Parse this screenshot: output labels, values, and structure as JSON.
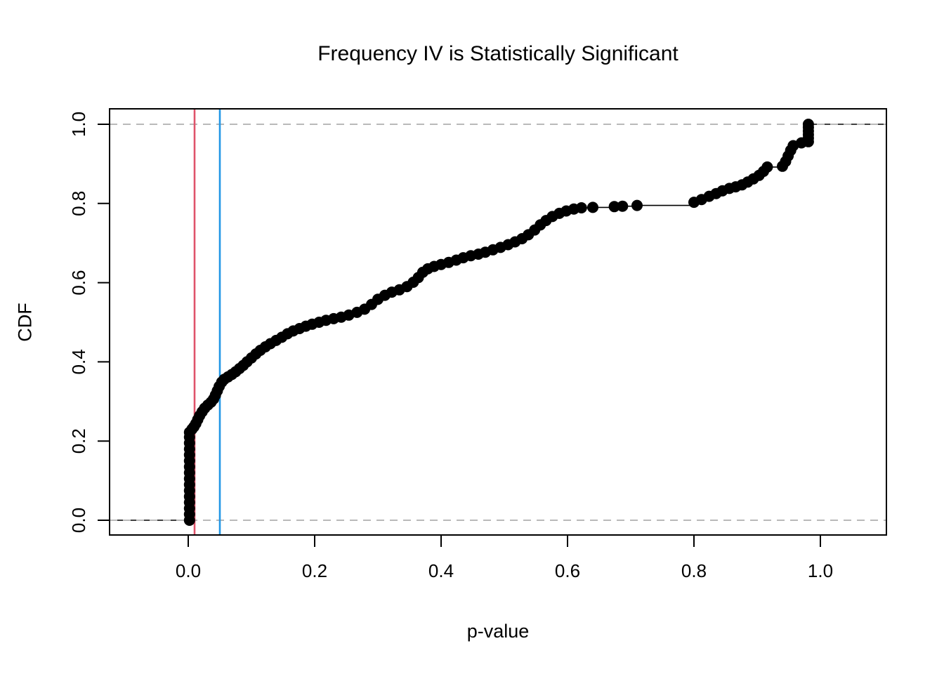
{
  "chart_data": {
    "type": "scatter",
    "subtype": "ecdf-step",
    "title": "Frequency IV is Statistically Significant",
    "xlabel": "p-value",
    "ylabel": "CDF",
    "xlim": [
      -0.125,
      1.105
    ],
    "ylim": [
      -0.04,
      1.075
    ],
    "x_ticks": [
      0.0,
      0.2,
      0.4,
      0.6,
      0.8,
      1.0
    ],
    "x_tick_labels": [
      "0.0",
      "0.2",
      "0.4",
      "0.6",
      "0.8",
      "1.0"
    ],
    "y_ticks": [
      0.0,
      0.2,
      0.4,
      0.6,
      0.8,
      1.0
    ],
    "y_tick_labels": [
      "0.0",
      "0.2",
      "0.4",
      "0.6",
      "0.8",
      "1.0"
    ],
    "grid": false,
    "point_color": "#000000",
    "line_color": "#000000",
    "frame_color": "#000000",
    "reference_lines": {
      "vertical": [
        {
          "x": 0.01,
          "color": "#DF536B",
          "style": "solid",
          "name": "alpha-0.01-line"
        },
        {
          "x": 0.05,
          "color": "#2297E6",
          "style": "solid",
          "name": "alpha-0.05-line"
        }
      ],
      "horizontal": [
        {
          "y": 0.0,
          "color": "#B9B9B9",
          "style": "dashed",
          "name": "cdf-0-line"
        },
        {
          "y": 1.0,
          "color": "#B9B9B9",
          "style": "dashed",
          "name": "cdf-1-line"
        }
      ]
    },
    "points": [
      [
        0.002,
        0.0
      ],
      [
        0.002,
        0.015
      ],
      [
        0.002,
        0.03
      ],
      [
        0.002,
        0.045
      ],
      [
        0.002,
        0.06
      ],
      [
        0.002,
        0.075
      ],
      [
        0.002,
        0.09
      ],
      [
        0.002,
        0.105
      ],
      [
        0.002,
        0.12
      ],
      [
        0.002,
        0.135
      ],
      [
        0.002,
        0.15
      ],
      [
        0.002,
        0.165
      ],
      [
        0.002,
        0.18
      ],
      [
        0.002,
        0.195
      ],
      [
        0.002,
        0.21
      ],
      [
        0.002,
        0.222
      ],
      [
        0.006,
        0.23
      ],
      [
        0.009,
        0.236
      ],
      [
        0.012,
        0.244
      ],
      [
        0.015,
        0.254
      ],
      [
        0.018,
        0.264
      ],
      [
        0.022,
        0.274
      ],
      [
        0.026,
        0.283
      ],
      [
        0.031,
        0.291
      ],
      [
        0.036,
        0.298
      ],
      [
        0.04,
        0.306
      ],
      [
        0.043,
        0.316
      ],
      [
        0.046,
        0.327
      ],
      [
        0.049,
        0.338
      ],
      [
        0.053,
        0.349
      ],
      [
        0.057,
        0.356
      ],
      [
        0.063,
        0.362
      ],
      [
        0.069,
        0.368
      ],
      [
        0.075,
        0.375
      ],
      [
        0.081,
        0.383
      ],
      [
        0.087,
        0.391
      ],
      [
        0.093,
        0.4
      ],
      [
        0.1,
        0.41
      ],
      [
        0.107,
        0.42
      ],
      [
        0.114,
        0.429
      ],
      [
        0.122,
        0.438
      ],
      [
        0.13,
        0.446
      ],
      [
        0.139,
        0.454
      ],
      [
        0.148,
        0.462
      ],
      [
        0.157,
        0.471
      ],
      [
        0.166,
        0.478
      ],
      [
        0.176,
        0.484
      ],
      [
        0.186,
        0.49
      ],
      [
        0.196,
        0.495
      ],
      [
        0.207,
        0.5
      ],
      [
        0.218,
        0.505
      ],
      [
        0.23,
        0.509
      ],
      [
        0.242,
        0.513
      ],
      [
        0.254,
        0.518
      ],
      [
        0.267,
        0.525
      ],
      [
        0.279,
        0.533
      ],
      [
        0.29,
        0.545
      ],
      [
        0.3,
        0.558
      ],
      [
        0.311,
        0.568
      ],
      [
        0.322,
        0.576
      ],
      [
        0.334,
        0.582
      ],
      [
        0.346,
        0.59
      ],
      [
        0.356,
        0.601
      ],
      [
        0.364,
        0.613
      ],
      [
        0.371,
        0.626
      ],
      [
        0.379,
        0.635
      ],
      [
        0.389,
        0.641
      ],
      [
        0.4,
        0.646
      ],
      [
        0.412,
        0.651
      ],
      [
        0.424,
        0.657
      ],
      [
        0.435,
        0.663
      ],
      [
        0.447,
        0.668
      ],
      [
        0.459,
        0.672
      ],
      [
        0.47,
        0.677
      ],
      [
        0.482,
        0.683
      ],
      [
        0.494,
        0.689
      ],
      [
        0.506,
        0.696
      ],
      [
        0.517,
        0.703
      ],
      [
        0.528,
        0.711
      ],
      [
        0.538,
        0.721
      ],
      [
        0.548,
        0.733
      ],
      [
        0.557,
        0.746
      ],
      [
        0.566,
        0.757
      ],
      [
        0.576,
        0.767
      ],
      [
        0.587,
        0.775
      ],
      [
        0.598,
        0.781
      ],
      [
        0.61,
        0.786
      ],
      [
        0.622,
        0.789
      ],
      [
        0.64,
        0.79
      ],
      [
        0.674,
        0.792
      ],
      [
        0.687,
        0.793
      ],
      [
        0.71,
        0.795
      ],
      [
        0.8,
        0.803
      ],
      [
        0.812,
        0.81
      ],
      [
        0.824,
        0.818
      ],
      [
        0.835,
        0.825
      ],
      [
        0.845,
        0.832
      ],
      [
        0.856,
        0.838
      ],
      [
        0.866,
        0.842
      ],
      [
        0.876,
        0.847
      ],
      [
        0.885,
        0.854
      ],
      [
        0.894,
        0.862
      ],
      [
        0.903,
        0.871
      ],
      [
        0.91,
        0.881
      ],
      [
        0.916,
        0.892
      ],
      [
        0.94,
        0.894
      ],
      [
        0.945,
        0.906
      ],
      [
        0.949,
        0.92
      ],
      [
        0.953,
        0.934
      ],
      [
        0.957,
        0.946
      ],
      [
        0.97,
        0.953
      ],
      [
        0.981,
        0.956
      ],
      [
        0.981,
        0.965
      ],
      [
        0.981,
        0.974
      ],
      [
        0.981,
        0.983
      ],
      [
        0.981,
        0.992
      ],
      [
        0.981,
        1.0
      ]
    ]
  }
}
